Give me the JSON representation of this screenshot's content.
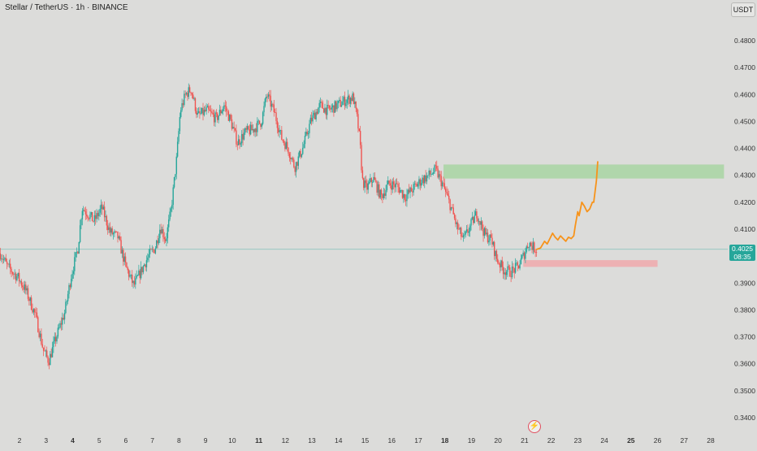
{
  "header": {
    "symbol": "Stellar / TetherUS · 1h · BINANCE"
  },
  "toolbar": {
    "currency": "USDT"
  },
  "last_price": {
    "value": "0.4025",
    "countdown": "08:35"
  },
  "icons": {
    "fast": "lightning-icon"
  },
  "colors": {
    "up": "#26a69a",
    "down": "#ef5350",
    "projection": "#f7931a",
    "target_zone": "#a8d5a2",
    "stop_zone": "#f0a9ac",
    "price_line": "#26a69a"
  },
  "chart_data": {
    "type": "candlestick",
    "title": "Stellar / TetherUS · 1h · BINANCE",
    "y_axis": {
      "side": "right",
      "ticks": [
        "0.4800",
        "0.4700",
        "0.4600",
        "0.4500",
        "0.4400",
        "0.4300",
        "0.4200",
        "0.4100",
        "0.4000",
        "0.3900",
        "0.3800",
        "0.3700",
        "0.3600",
        "0.3500",
        "0.3400"
      ],
      "ylim": [
        0.3375,
        0.49
      ]
    },
    "x_axis": {
      "ticks": [
        {
          "label": "2",
          "day": 2,
          "bold": false
        },
        {
          "label": "3",
          "day": 3,
          "bold": false
        },
        {
          "label": "4",
          "day": 4,
          "bold": true
        },
        {
          "label": "5",
          "day": 5,
          "bold": false
        },
        {
          "label": "6",
          "day": 6,
          "bold": false
        },
        {
          "label": "7",
          "day": 7,
          "bold": false
        },
        {
          "label": "8",
          "day": 8,
          "bold": false
        },
        {
          "label": "9",
          "day": 9,
          "bold": false
        },
        {
          "label": "10",
          "day": 10,
          "bold": false
        },
        {
          "label": "11",
          "day": 11,
          "bold": true
        },
        {
          "label": "12",
          "day": 12,
          "bold": false
        },
        {
          "label": "13",
          "day": 13,
          "bold": false
        },
        {
          "label": "14",
          "day": 14,
          "bold": false
        },
        {
          "label": "15",
          "day": 15,
          "bold": false
        },
        {
          "label": "16",
          "day": 16,
          "bold": false
        },
        {
          "label": "17",
          "day": 17,
          "bold": false
        },
        {
          "label": "18",
          "day": 18,
          "bold": true
        },
        {
          "label": "19",
          "day": 19,
          "bold": false
        },
        {
          "label": "20",
          "day": 20,
          "bold": false
        },
        {
          "label": "21",
          "day": 21,
          "bold": false
        },
        {
          "label": "22",
          "day": 22,
          "bold": false
        },
        {
          "label": "23",
          "day": 23,
          "bold": false
        },
        {
          "label": "24",
          "day": 24,
          "bold": false
        },
        {
          "label": "25",
          "day": 25,
          "bold": true
        },
        {
          "label": "26",
          "day": 26,
          "bold": false
        },
        {
          "label": "27",
          "day": 27,
          "bold": false
        },
        {
          "label": "28",
          "day": 28,
          "bold": false
        }
      ]
    },
    "price_path": [
      [
        1.28,
        0.401
      ],
      [
        1.55,
        0.396
      ],
      [
        1.95,
        0.392
      ],
      [
        2.25,
        0.387
      ],
      [
        2.6,
        0.378
      ],
      [
        2.9,
        0.365
      ],
      [
        3.1,
        0.361
      ],
      [
        3.35,
        0.369
      ],
      [
        3.7,
        0.379
      ],
      [
        3.95,
        0.393
      ],
      [
        4.2,
        0.403
      ],
      [
        4.35,
        0.418
      ],
      [
        4.55,
        0.416
      ],
      [
        4.8,
        0.413
      ],
      [
        5.1,
        0.418
      ],
      [
        5.4,
        0.409
      ],
      [
        5.7,
        0.407
      ],
      [
        6.0,
        0.396
      ],
      [
        6.3,
        0.389
      ],
      [
        6.6,
        0.395
      ],
      [
        6.85,
        0.4
      ],
      [
        7.1,
        0.403
      ],
      [
        7.3,
        0.411
      ],
      [
        7.5,
        0.406
      ],
      [
        7.7,
        0.417
      ],
      [
        7.9,
        0.435
      ],
      [
        8.05,
        0.454
      ],
      [
        8.25,
        0.46
      ],
      [
        8.45,
        0.462
      ],
      [
        8.7,
        0.452
      ],
      [
        9.05,
        0.454
      ],
      [
        9.4,
        0.451
      ],
      [
        9.7,
        0.456
      ],
      [
        9.95,
        0.45
      ],
      [
        10.2,
        0.442
      ],
      [
        10.5,
        0.446
      ],
      [
        10.8,
        0.447
      ],
      [
        11.1,
        0.45
      ],
      [
        11.3,
        0.46
      ],
      [
        11.6,
        0.453
      ],
      [
        11.85,
        0.444
      ],
      [
        12.1,
        0.44
      ],
      [
        12.35,
        0.433
      ],
      [
        12.65,
        0.44
      ],
      [
        12.95,
        0.45
      ],
      [
        13.3,
        0.456
      ],
      [
        13.6,
        0.454
      ],
      [
        13.95,
        0.456
      ],
      [
        14.3,
        0.458
      ],
      [
        14.55,
        0.459
      ],
      [
        14.7,
        0.451
      ],
      [
        14.8,
        0.443
      ],
      [
        14.9,
        0.428
      ],
      [
        15.05,
        0.425
      ],
      [
        15.3,
        0.429
      ],
      [
        15.6,
        0.422
      ],
      [
        15.9,
        0.427
      ],
      [
        16.2,
        0.426
      ],
      [
        16.5,
        0.422
      ],
      [
        16.8,
        0.425
      ],
      [
        17.1,
        0.428
      ],
      [
        17.4,
        0.43
      ],
      [
        17.65,
        0.432
      ],
      [
        17.9,
        0.427
      ],
      [
        18.2,
        0.419
      ],
      [
        18.45,
        0.411
      ],
      [
        18.7,
        0.406
      ],
      [
        18.95,
        0.411
      ],
      [
        19.2,
        0.416
      ],
      [
        19.5,
        0.408
      ],
      [
        19.75,
        0.406
      ],
      [
        19.95,
        0.399
      ],
      [
        20.2,
        0.395
      ],
      [
        20.45,
        0.394
      ],
      [
        20.75,
        0.396
      ],
      [
        20.95,
        0.4
      ],
      [
        21.15,
        0.405
      ],
      [
        21.35,
        0.403
      ],
      [
        21.45,
        0.4025
      ]
    ],
    "projection": {
      "points": [
        [
          21.45,
          0.4025
        ],
        [
          21.6,
          0.403
        ],
        [
          21.75,
          0.4055
        ],
        [
          21.85,
          0.4045
        ],
        [
          21.95,
          0.4065
        ],
        [
          22.05,
          0.4085
        ],
        [
          22.15,
          0.407
        ],
        [
          22.25,
          0.406
        ],
        [
          22.35,
          0.4075
        ],
        [
          22.45,
          0.4065
        ],
        [
          22.55,
          0.4055
        ],
        [
          22.65,
          0.407
        ],
        [
          22.75,
          0.4065
        ],
        [
          22.85,
          0.4075
        ],
        [
          22.9,
          0.411
        ],
        [
          23.0,
          0.4165
        ],
        [
          23.05,
          0.415
        ],
        [
          23.15,
          0.42
        ],
        [
          23.25,
          0.4185
        ],
        [
          23.35,
          0.4165
        ],
        [
          23.45,
          0.4175
        ],
        [
          23.55,
          0.42
        ],
        [
          23.6,
          0.42
        ],
        [
          23.7,
          0.428
        ],
        [
          23.75,
          0.435
        ]
      ]
    },
    "zones": [
      {
        "kind": "target",
        "from_day": 17.95,
        "to_day": 28.5,
        "low": 0.4288,
        "high": 0.434
      },
      {
        "kind": "stop",
        "from_day": 20.95,
        "to_day": 26.0,
        "low": 0.396,
        "high": 0.3985
      }
    ],
    "horizontal_line": {
      "price": 0.4025
    },
    "grid": false
  }
}
